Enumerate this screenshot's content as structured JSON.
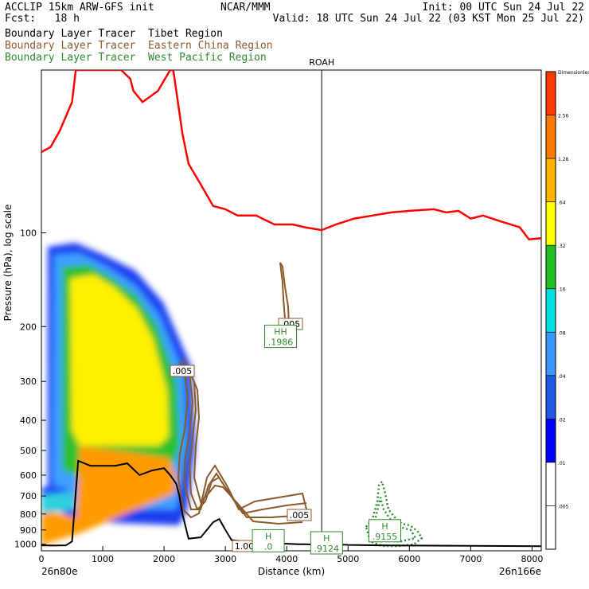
{
  "header": {
    "model": "ACCLIP 15km ARW-GFS init",
    "forecast": "Fcst:   18 h",
    "center": "NCAR/MMM",
    "init": "Init: 00 UTC Sun 24 Jul 22",
    "valid": "Valid: 18 UTC Sun 24 Jul 22 (03 KST Mon 25 Jul 22)"
  },
  "legend": [
    {
      "text": "Boundary Layer Tracer  Tibet Region",
      "color": "#000000"
    },
    {
      "text": "Boundary Layer Tracer  Eastern China Region",
      "color": "#8b5a2b"
    },
    {
      "text": "Boundary Layer Tracer  West Pacific Region",
      "color": "#2e8b2e"
    }
  ],
  "chart_data": {
    "type": "contour-cross-section",
    "xlabel": "Distance (km)",
    "ylabel": "Pressure (hPa), log scale",
    "xlim": [
      0,
      8150
    ],
    "ylim_hpa": [
      1050,
      30
    ],
    "y_scale": "log",
    "x_ticks": [
      0,
      1000,
      2000,
      3000,
      4000,
      5000,
      6000,
      7000,
      8000
    ],
    "y_ticks": [
      100,
      200,
      300,
      400,
      500,
      600,
      700,
      800,
      900,
      1000
    ],
    "endpoints": {
      "left": "26n80e",
      "right": "26n166e"
    },
    "marker": {
      "label": "ROAH",
      "x_km": 4570
    },
    "colorbar": {
      "title": "Dimensionless",
      "levels": [
        ".005",
        ".01",
        ".02",
        ".04",
        ".08",
        ".16",
        ".32",
        ".64",
        "1.28",
        "2.56"
      ],
      "colors": [
        "#ffffff",
        "#ffffff",
        "#0000ff",
        "#1e5ae6",
        "#3c96ff",
        "#00e0e0",
        "#20c020",
        "#ffff00",
        "#ffb400",
        "#ff7800",
        "#ff3c00"
      ]
    },
    "tropopause_line": {
      "color": "#ff0000",
      "x_km": [
        0,
        150,
        300,
        500,
        560,
        650,
        900,
        1100,
        1300,
        1450,
        1500,
        1650,
        1900,
        2100,
        2150,
        2300,
        2400,
        2600,
        2800,
        3000,
        3200,
        3500,
        3800,
        4100,
        4300,
        4570,
        4800,
        5100,
        5400,
        5700,
        6000,
        6400,
        6600,
        6800,
        7000,
        7200,
        7500,
        7800,
        7950,
        8150
      ],
      "p_hpa": [
        55,
        53,
        47,
        38,
        30,
        30,
        30,
        30,
        30,
        32,
        35,
        38,
        35,
        30,
        30,
        48,
        60,
        70,
        82,
        84,
        88,
        88,
        94,
        94,
        96,
        98,
        94,
        90,
        88,
        86,
        85,
        84,
        86,
        85,
        90,
        88,
        92,
        96,
        105,
        104
      ]
    },
    "terrain_line": {
      "color": "#000000",
      "x_km": [
        0,
        200,
        400,
        500,
        600,
        800,
        1000,
        1200,
        1400,
        1600,
        1800,
        2000,
        2100,
        2200,
        2250,
        2300,
        2400,
        2600,
        2800,
        2900,
        3000,
        3100,
        3300,
        3600,
        3900,
        4200,
        4500,
        4700,
        4800,
        5000,
        5500,
        6000,
        7000,
        8150
      ],
      "p_hpa": [
        1008,
        1010,
        1008,
        980,
        540,
        560,
        560,
        560,
        550,
        600,
        580,
        570,
        600,
        640,
        700,
        800,
        960,
        950,
        850,
        830,
        900,
        970,
        980,
        1000,
        995,
        1000,
        1002,
        980,
        1000,
        1005,
        1008,
        1010,
        1012,
        1015
      ]
    },
    "eastern_china_contours": {
      "color": "#8b5a2b",
      "labels": [
        ".005",
        ".005",
        ".005",
        "1.00"
      ]
    },
    "tibet_shaded_region_km": [
      60,
      2450
    ],
    "west_pacific_contour": {
      "color": "#2e8b2e",
      "style": "dotted"
    },
    "annotations": [
      {
        "label": "HH",
        "value": ".1986",
        "x_km": 3900,
        "p_hpa": 215
      },
      {
        "label": "H",
        "value": ".9155",
        "x_km": 5600,
        "p_hpa": 905
      },
      {
        "label": "H",
        "value": ".9124",
        "x_km": 4650,
        "p_hpa": 990
      },
      {
        "label": "H",
        "value": ".0",
        "x_km": 3700,
        "p_hpa": 975
      }
    ]
  }
}
